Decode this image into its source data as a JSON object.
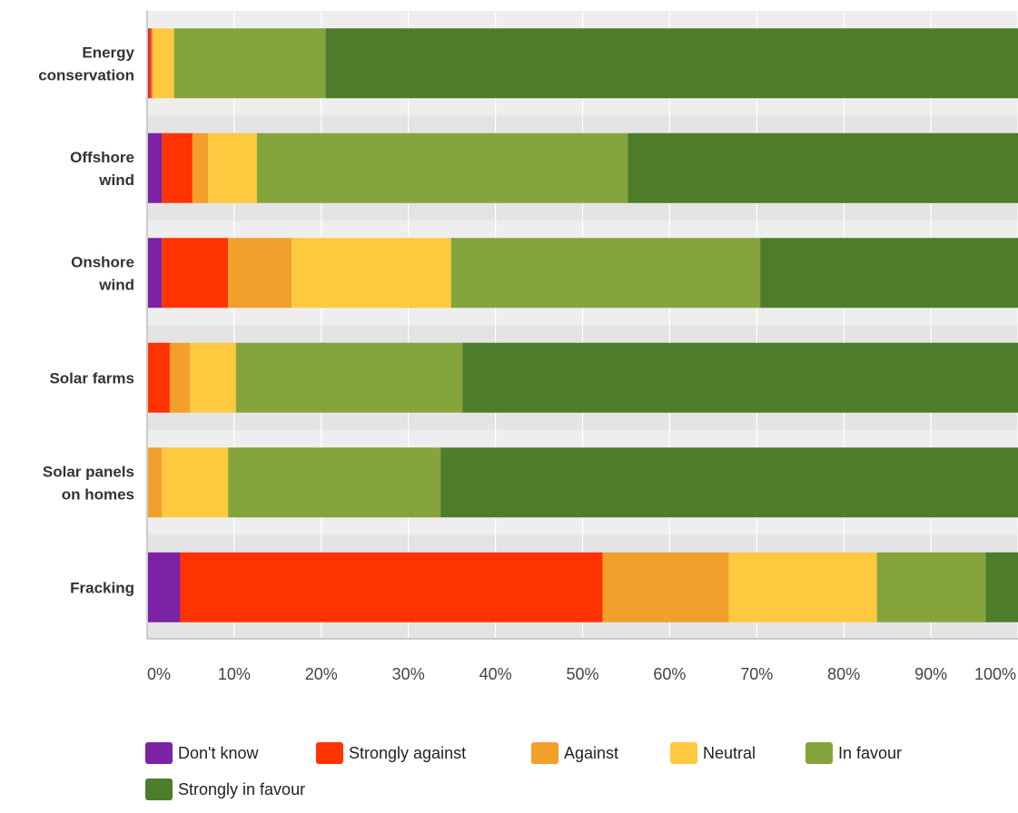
{
  "chart_data": {
    "type": "bar",
    "orientation": "horizontal",
    "stacked": true,
    "categories": [
      [
        "Energy",
        "conservation"
      ],
      [
        "Offshore",
        "wind"
      ],
      [
        "Onshore",
        "wind"
      ],
      [
        "Solar farms"
      ],
      [
        "Solar panels",
        "on homes"
      ],
      [
        "Fracking"
      ]
    ],
    "series": [
      {
        "name": "Don't know",
        "color": "#7b22a6",
        "values": [
          0.2,
          1.7,
          1.7,
          0,
          0,
          3.8
        ]
      },
      {
        "name": "Strongly against",
        "color": "#ff3300",
        "values": [
          0.3,
          3.5,
          7.6,
          2.6,
          0,
          48.5
        ]
      },
      {
        "name": "Against",
        "color": "#f29f2c",
        "values": [
          0.2,
          1.8,
          7.3,
          2.3,
          1.7,
          14.5
        ]
      },
      {
        "name": "Neutral",
        "color": "#fdc93e",
        "values": [
          2.4,
          5.6,
          18.3,
          5.3,
          7.6,
          17.0
        ]
      },
      {
        "name": "In favour",
        "color": "#86a43c",
        "values": [
          17.4,
          42.6,
          35.5,
          26.0,
          24.4,
          12.5
        ]
      },
      {
        "name": "Strongly in favour",
        "color": "#4d7c2a",
        "values": [
          79.5,
          44.8,
          29.6,
          63.8,
          66.3,
          3.7
        ]
      }
    ],
    "xticks": [
      "0%",
      "10%",
      "20%",
      "30%",
      "40%",
      "50%",
      "60%",
      "70%",
      "80%",
      "90%",
      "100%"
    ],
    "xlim": [
      0,
      100
    ],
    "grid": true,
    "legend_position": "bottom",
    "title": "",
    "xlabel": "",
    "ylabel": ""
  }
}
